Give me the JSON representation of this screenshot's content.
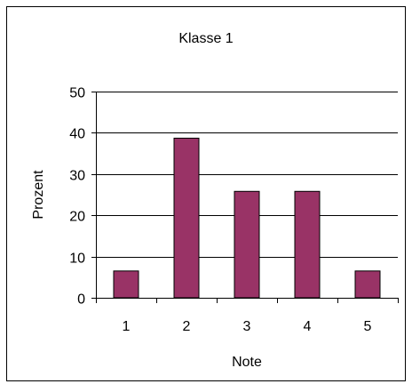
{
  "chart_data": {
    "type": "bar",
    "title": "Klasse 1",
    "xlabel": "Note",
    "ylabel": "Prozent",
    "categories": [
      "1",
      "2",
      "3",
      "4",
      "5"
    ],
    "values": [
      6.5,
      38.7,
      25.8,
      25.8,
      6.5
    ],
    "ylim": [
      0,
      50
    ],
    "yticks": [
      "0",
      "10",
      "20",
      "30",
      "40",
      "50"
    ],
    "grid": true,
    "legend": "none",
    "bar_color": "#993366"
  }
}
